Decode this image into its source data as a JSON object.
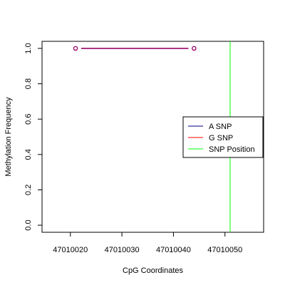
{
  "chart_data": {
    "type": "line",
    "xlabel": "CpG Coordinates",
    "ylabel": "Methylation Frequency",
    "xlim": [
      47010014.5,
      47010057.5
    ],
    "ylim": [
      -0.04,
      1.04
    ],
    "x_ticks": [
      47010020,
      47010030,
      47010040,
      47010050
    ],
    "x_tick_labels": [
      "47010020",
      "47010030",
      "47010040",
      "47010050"
    ],
    "y_ticks": [
      0.0,
      0.2,
      0.4,
      0.6,
      0.8,
      1.0
    ],
    "y_tick_labels": [
      "0.0",
      "0.2",
      "0.4",
      "0.6",
      "0.8",
      "1.0"
    ],
    "grid": false,
    "legend_position": "right",
    "series": [
      {
        "name": "A SNP",
        "color": "#000080",
        "x": [
          47010021,
          47010044
        ],
        "y": [
          1.0,
          1.0
        ]
      },
      {
        "name": "G SNP",
        "color": "#FF0000",
        "x": [
          47010021,
          47010044
        ],
        "y": [
          1.0,
          1.0
        ]
      }
    ],
    "vlines": [
      {
        "name": "SNP Position",
        "color": "#00FF00",
        "x": 47010051
      }
    ],
    "legend": [
      {
        "label": "A SNP",
        "color": "#000080"
      },
      {
        "label": "G SNP",
        "color": "#FF0000"
      },
      {
        "label": "SNP Position",
        "color": "#00FF00"
      }
    ],
    "overlap_color": "#990066"
  }
}
